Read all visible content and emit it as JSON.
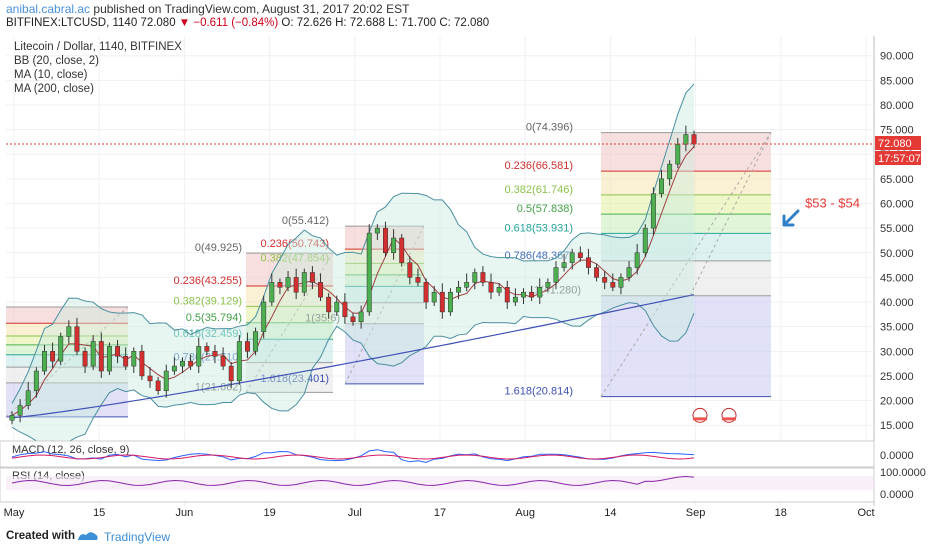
{
  "header": {
    "author": "anibal.cabral.ac",
    "published": "published on TradingView.com, August 31, 2017 20:02 EST",
    "ticker_line_a": "BITFINEX:LTCUSD, 1140  72.080",
    "ticker_change": "▼ −0.611 (−0.84%)",
    "ticker_line_b": "O: 72.626 H: 72.688 L: 71.700 C: 72.080"
  },
  "footer": {
    "created_with": "Created with",
    "brand": "TradingView"
  },
  "colors": {
    "candle_up": "#4caf50",
    "candle_down": "#d32f2f",
    "bb": "#4a8fa0",
    "ma10": "#a04040",
    "ma200": "#3f51b5",
    "macd": "#2962ff",
    "macd_signal": "#d81b60",
    "rsi": "#8e24aa",
    "price_line": "#e53935",
    "annotation": "#e53935",
    "arrow": "#2f80c8"
  },
  "chart_data": {
    "type": "candlestick",
    "title": "Litecoin / Dollar, 1140, BITFINEX",
    "indicators": [
      "BB (20, close, 2)",
      "MA (10, close)",
      "MA (200, close)"
    ],
    "y_axis_ticks": [
      "90.000",
      "85.000",
      "80.000",
      "75.000",
      "70.000",
      "65.000",
      "60.000",
      "55.000",
      "50.000",
      "45.000",
      "40.000",
      "35.000",
      "30.000",
      "25.000",
      "20.000",
      "15.000"
    ],
    "ylim": [
      12,
      94
    ],
    "x_axis_ticks": [
      "May",
      "15",
      "Jun",
      "19",
      "Jul",
      "17",
      "Aug",
      "14",
      "Sep",
      "18",
      "Oct"
    ],
    "current_price_label": "72.080",
    "countdown_label": "17:57:07",
    "annotation_text": "$53 - $54",
    "close_series": [
      17,
      19,
      22,
      26,
      30,
      28,
      33,
      35,
      30,
      27,
      32,
      26,
      31,
      29,
      27,
      30,
      25,
      24,
      22,
      26,
      27,
      28,
      27,
      31,
      30,
      29,
      27,
      24,
      32,
      30,
      34,
      40,
      44,
      43,
      45,
      42,
      46,
      44,
      41,
      38,
      40,
      37,
      36,
      38,
      54,
      55,
      50,
      53,
      48,
      45,
      44,
      40,
      42,
      38,
      42,
      43,
      44,
      46,
      44,
      42,
      43,
      40,
      41,
      42,
      41,
      43,
      44,
      47,
      48,
      50,
      49,
      47,
      45,
      44,
      43,
      45,
      47,
      50,
      55,
      62,
      65,
      68,
      72,
      74,
      72.08
    ],
    "fib_retracements": [
      {
        "levels": [
          {
            "r": "0",
            "v": 39.0
          },
          {
            "r": "0.236",
            "v": 35.7
          },
          {
            "r": "0.382",
            "v": 33.1
          },
          {
            "r": "0.5",
            "v": 31.3
          },
          {
            "r": "0.618",
            "v": 29.3
          },
          {
            "r": "0.786",
            "v": 26.8
          },
          {
            "r": "1",
            "v": 23.6
          },
          {
            "r": "1.618",
            "v": 16.7
          }
        ]
      },
      {
        "levels": [
          {
            "r": "0",
            "v": 49.925
          },
          {
            "r": "0.236",
            "v": 43.255
          },
          {
            "r": "0.382",
            "v": 39.129
          },
          {
            "r": "0.5",
            "v": 35.794
          },
          {
            "r": "0.618",
            "v": 32.459
          },
          {
            "r": "0.786",
            "v": 27.71
          },
          {
            "r": "1",
            "v": 21.662
          }
        ]
      },
      {
        "levels": [
          {
            "r": "0",
            "v": 55.412
          },
          {
            "r": "0.236",
            "v": 50.743
          },
          {
            "r": "0.382",
            "v": 47.854
          },
          {
            "r": "0.5",
            "v": 45.52
          },
          {
            "r": "0.618",
            "v": 43.186
          },
          {
            "r": "0.786",
            "v": 39.863
          },
          {
            "r": "1",
            "v": 35.6
          },
          {
            "r": "1.618",
            "v": 23.401
          }
        ]
      },
      {
        "levels": [
          {
            "r": "0",
            "v": 74.396
          },
          {
            "r": "0.236",
            "v": 66.581
          },
          {
            "r": "0.382",
            "v": 61.746
          },
          {
            "r": "0.5",
            "v": 57.838
          },
          {
            "r": "0.618",
            "v": 53.931
          },
          {
            "r": "0.786",
            "v": 48.367
          },
          {
            "r": "1",
            "v": 41.28
          },
          {
            "r": "1.618",
            "v": 20.814
          }
        ]
      }
    ],
    "fib_labels_shown": [
      "0(74.396)",
      "0.236(66.581)",
      "0.382(61.746)",
      "0.5(57.838)",
      "0.618(53.931)",
      "0.786(48.367)",
      "1(41.280)",
      "1.618(20.814)",
      "0(55.412)",
      "0.236(50.743)",
      "0.382(47.854)",
      "1(35.6)",
      "1.618(23.401)",
      "0(49.925)",
      "0.236(43.255)",
      "0.382(39.129)",
      "0.5(35.794)",
      "0.618(32.459)",
      "0.786(27.710)",
      "1(21.662)"
    ],
    "subpanes": [
      {
        "label": "MACD (12, 26, close, 9)",
        "ticks": [
          "0.0000"
        ]
      },
      {
        "label": "RSI (14, close)",
        "ticks": [
          "100.0000",
          "0.0000"
        ]
      }
    ]
  }
}
